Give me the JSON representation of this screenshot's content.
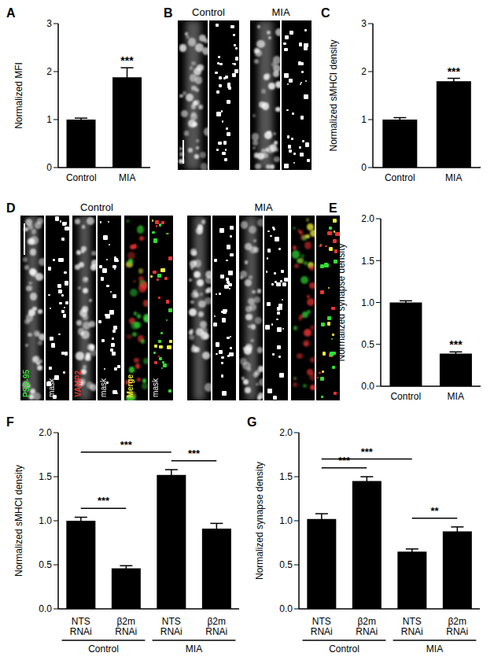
{
  "chart_data": [
    {
      "panel": "A",
      "type": "bar",
      "categories": [
        "Control",
        "MIA"
      ],
      "values": [
        1.0,
        1.88
      ],
      "errors": [
        0.03,
        0.2
      ],
      "color": "#000000",
      "y_label": "Normalized MFI",
      "ylim": [
        0,
        3
      ],
      "yticks": [
        0,
        1,
        2,
        3
      ],
      "annotations": [
        {
          "category": 1,
          "text": "***"
        }
      ]
    },
    {
      "panel": "C",
      "type": "bar",
      "categories": [
        "Control",
        "MIA"
      ],
      "values": [
        1.0,
        1.8
      ],
      "errors": [
        0.04,
        0.06
      ],
      "color": "#000000",
      "y_label": "Normalized sMHCI density",
      "ylim": [
        0,
        3
      ],
      "yticks": [
        0,
        1,
        2,
        3
      ],
      "annotations": [
        {
          "category": 1,
          "text": "***"
        }
      ]
    },
    {
      "panel": "E",
      "type": "bar",
      "categories": [
        "Control",
        "MIA"
      ],
      "values": [
        1.0,
        0.39
      ],
      "errors": [
        0.02,
        0.02
      ],
      "color": "#000000",
      "y_label": "Normalized synapse density",
      "ylim": [
        0,
        2
      ],
      "yticks": [
        {
          "value": 0,
          "label": "0.0"
        },
        0.5,
        {
          "value": 1,
          "label": "1.0"
        },
        1.5,
        {
          "value": 2,
          "label": "2.0"
        }
      ],
      "annotations": [
        {
          "category": 1,
          "text": "***"
        }
      ]
    },
    {
      "panel": "F",
      "type": "bar",
      "categories": [
        "NTS RNAi",
        "β2m RNAi",
        "NTS RNAi",
        "β2m RNAi"
      ],
      "values": [
        1.0,
        0.46,
        1.52,
        0.91
      ],
      "errors": [
        0.04,
        0.03,
        0.06,
        0.06
      ],
      "color": "#000000",
      "y_label": "Normalized sMHCI density",
      "ylim": [
        0,
        2
      ],
      "yticks": [
        {
          "value": 0,
          "label": "0.0"
        },
        0.5,
        {
          "value": 1,
          "label": "1.0"
        },
        1.5,
        {
          "value": 2,
          "label": "2.0"
        }
      ],
      "groups": [
        {
          "label": "Control",
          "categories": [
            0,
            1
          ]
        },
        {
          "label": "MIA",
          "categories": [
            2,
            3
          ]
        }
      ],
      "comparisons": [
        {
          "from": 0,
          "to": 1,
          "text": "***"
        },
        {
          "from": 0,
          "to": 2,
          "text": "***"
        },
        {
          "from": 2,
          "to": 3,
          "text": "***"
        }
      ]
    },
    {
      "panel": "G",
      "type": "bar",
      "categories": [
        "NTS RNAi",
        "β2m RNAi",
        "NTS RNAi",
        "β2m RNAi"
      ],
      "values": [
        1.02,
        1.45,
        0.65,
        0.88
      ],
      "errors": [
        0.06,
        0.05,
        0.03,
        0.05
      ],
      "color": "#000000",
      "y_label": "Normalized synapse density",
      "ylim": [
        0,
        2
      ],
      "yticks": [
        {
          "value": 0,
          "label": "0.0"
        },
        0.5,
        {
          "value": 1,
          "label": "1.0"
        },
        1.5,
        {
          "value": 2,
          "label": "2.0"
        }
      ],
      "groups": [
        {
          "label": "Control",
          "categories": [
            0,
            1
          ]
        },
        {
          "label": "MIA",
          "categories": [
            2,
            3
          ]
        }
      ],
      "comparisons": [
        {
          "from": 0,
          "to": 1,
          "text": "***"
        },
        {
          "from": 0,
          "to": 2,
          "text": "***"
        },
        {
          "from": 2,
          "to": 3,
          "text": "**"
        }
      ]
    }
  ],
  "images": [
    {
      "panel": "B",
      "groups": [
        {
          "label": "Control"
        },
        {
          "label": "MIA"
        }
      ]
    },
    {
      "panel": "D",
      "groups": [
        {
          "label": "Control",
          "channels": [
            "PSD-95",
            "VAMP2",
            "Merge"
          ],
          "channel_colors": [
            "#33dd33",
            "#ee3333",
            "#eeee33"
          ],
          "mask_label": "mask"
        },
        {
          "label": "MIA"
        }
      ]
    }
  ]
}
